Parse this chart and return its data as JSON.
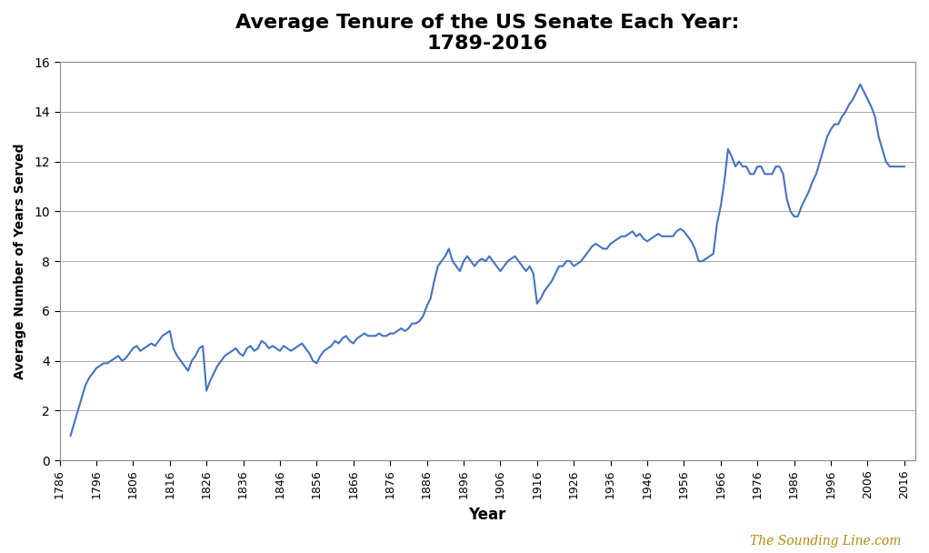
{
  "title": "Average Tenure of the US Senate Each Year:\n1789-2016",
  "xlabel": "Year",
  "ylabel": "Average Number of Years Served",
  "watermark": "The Sounding Line.com",
  "line_color": "#4472C4",
  "background_color": "#FFFFFF",
  "grid_color": "#AAAAAA",
  "xlim": [
    1786,
    2019
  ],
  "ylim": [
    0,
    16
  ],
  "yticks": [
    0,
    2,
    4,
    6,
    8,
    10,
    12,
    14,
    16
  ],
  "xticks": [
    1786,
    1796,
    1806,
    1816,
    1826,
    1836,
    1846,
    1856,
    1866,
    1876,
    1886,
    1896,
    1906,
    1916,
    1926,
    1936,
    1946,
    1956,
    1966,
    1976,
    1986,
    1996,
    2006,
    2016
  ],
  "years": [
    1789,
    1790,
    1791,
    1792,
    1793,
    1794,
    1795,
    1796,
    1797,
    1798,
    1799,
    1800,
    1801,
    1802,
    1803,
    1804,
    1805,
    1806,
    1807,
    1808,
    1809,
    1810,
    1811,
    1812,
    1813,
    1814,
    1815,
    1816,
    1817,
    1818,
    1819,
    1820,
    1821,
    1822,
    1823,
    1824,
    1825,
    1826,
    1827,
    1828,
    1829,
    1830,
    1831,
    1832,
    1833,
    1834,
    1835,
    1836,
    1837,
    1838,
    1839,
    1840,
    1841,
    1842,
    1843,
    1844,
    1845,
    1846,
    1847,
    1848,
    1849,
    1850,
    1851,
    1852,
    1853,
    1854,
    1855,
    1856,
    1857,
    1858,
    1859,
    1860,
    1861,
    1862,
    1863,
    1864,
    1865,
    1866,
    1867,
    1868,
    1869,
    1870,
    1871,
    1872,
    1873,
    1874,
    1875,
    1876,
    1877,
    1878,
    1879,
    1880,
    1881,
    1882,
    1883,
    1884,
    1885,
    1886,
    1887,
    1888,
    1889,
    1890,
    1891,
    1892,
    1893,
    1894,
    1895,
    1896,
    1897,
    1898,
    1899,
    1900,
    1901,
    1902,
    1903,
    1904,
    1905,
    1906,
    1907,
    1908,
    1909,
    1910,
    1911,
    1912,
    1913,
    1914,
    1915,
    1916,
    1917,
    1918,
    1919,
    1920,
    1921,
    1922,
    1923,
    1924,
    1925,
    1926,
    1927,
    1928,
    1929,
    1930,
    1931,
    1932,
    1933,
    1934,
    1935,
    1936,
    1937,
    1938,
    1939,
    1940,
    1941,
    1942,
    1943,
    1944,
    1945,
    1946,
    1947,
    1948,
    1949,
    1950,
    1951,
    1952,
    1953,
    1954,
    1955,
    1956,
    1957,
    1958,
    1959,
    1960,
    1961,
    1962,
    1963,
    1964,
    1965,
    1966,
    1967,
    1968,
    1969,
    1970,
    1971,
    1972,
    1973,
    1974,
    1975,
    1976,
    1977,
    1978,
    1979,
    1980,
    1981,
    1982,
    1983,
    1984,
    1985,
    1986,
    1987,
    1988,
    1989,
    1990,
    1991,
    1992,
    1993,
    1994,
    1995,
    1996,
    1997,
    1998,
    1999,
    2000,
    2001,
    2002,
    2003,
    2004,
    2005,
    2006,
    2007,
    2008,
    2009,
    2010,
    2011,
    2012,
    2013,
    2014,
    2015,
    2016
  ],
  "values": [
    1.0,
    1.5,
    2.0,
    2.5,
    3.0,
    3.3,
    3.5,
    3.7,
    3.8,
    3.9,
    3.9,
    4.0,
    4.1,
    4.2,
    4.0,
    4.1,
    4.3,
    4.5,
    4.6,
    4.4,
    4.5,
    4.6,
    4.7,
    4.6,
    4.8,
    5.0,
    5.1,
    5.2,
    4.5,
    4.2,
    4.0,
    3.8,
    3.6,
    4.0,
    4.2,
    4.5,
    4.6,
    2.8,
    3.2,
    3.5,
    3.8,
    4.0,
    4.2,
    4.3,
    4.4,
    4.5,
    4.3,
    4.2,
    4.5,
    4.6,
    4.4,
    4.5,
    4.8,
    4.7,
    4.5,
    4.6,
    4.5,
    4.4,
    4.6,
    4.5,
    4.4,
    4.5,
    4.6,
    4.7,
    4.5,
    4.3,
    4.0,
    3.9,
    4.2,
    4.4,
    4.5,
    4.6,
    4.8,
    4.7,
    4.9,
    5.0,
    4.8,
    4.7,
    4.9,
    5.0,
    5.1,
    5.0,
    5.0,
    5.0,
    5.1,
    5.0,
    5.0,
    5.1,
    5.1,
    5.2,
    5.3,
    5.2,
    5.3,
    5.5,
    5.5,
    5.6,
    5.8,
    6.2,
    6.5,
    7.2,
    7.8,
    8.0,
    8.2,
    8.5,
    8.0,
    7.8,
    7.6,
    8.0,
    8.2,
    8.0,
    7.8,
    8.0,
    8.1,
    8.0,
    8.2,
    8.0,
    7.8,
    7.6,
    7.8,
    8.0,
    8.1,
    8.2,
    8.0,
    7.8,
    7.6,
    7.8,
    7.5,
    6.3,
    6.5,
    6.8,
    7.0,
    7.2,
    7.5,
    7.8,
    7.8,
    8.0,
    8.0,
    7.8,
    7.9,
    8.0,
    8.2,
    8.4,
    8.6,
    8.7,
    8.6,
    8.5,
    8.5,
    8.7,
    8.8,
    8.9,
    9.0,
    9.0,
    9.1,
    9.2,
    9.0,
    9.1,
    8.9,
    8.8,
    8.9,
    9.0,
    9.1,
    9.0,
    9.0,
    9.0,
    9.0,
    9.2,
    9.3,
    9.2,
    9.0,
    8.8,
    8.5,
    8.0,
    8.0,
    8.1,
    8.2,
    8.3,
    9.5,
    10.2,
    11.2,
    12.5,
    12.2,
    11.8,
    12.0,
    11.8,
    11.8,
    11.5,
    11.5,
    11.8,
    11.8,
    11.5,
    11.5,
    11.5,
    11.8,
    11.8,
    11.5,
    10.5,
    10.0,
    9.8,
    9.8,
    10.2,
    10.5,
    10.8,
    11.2,
    11.5,
    12.0,
    12.5,
    13.0,
    13.3,
    13.5,
    13.5,
    13.8,
    14.0,
    14.3,
    14.5,
    14.8,
    15.1,
    14.8,
    14.5,
    14.2,
    13.8,
    13.0,
    12.5,
    12.0,
    11.8,
    11.8,
    11.8,
    11.8,
    11.8
  ]
}
